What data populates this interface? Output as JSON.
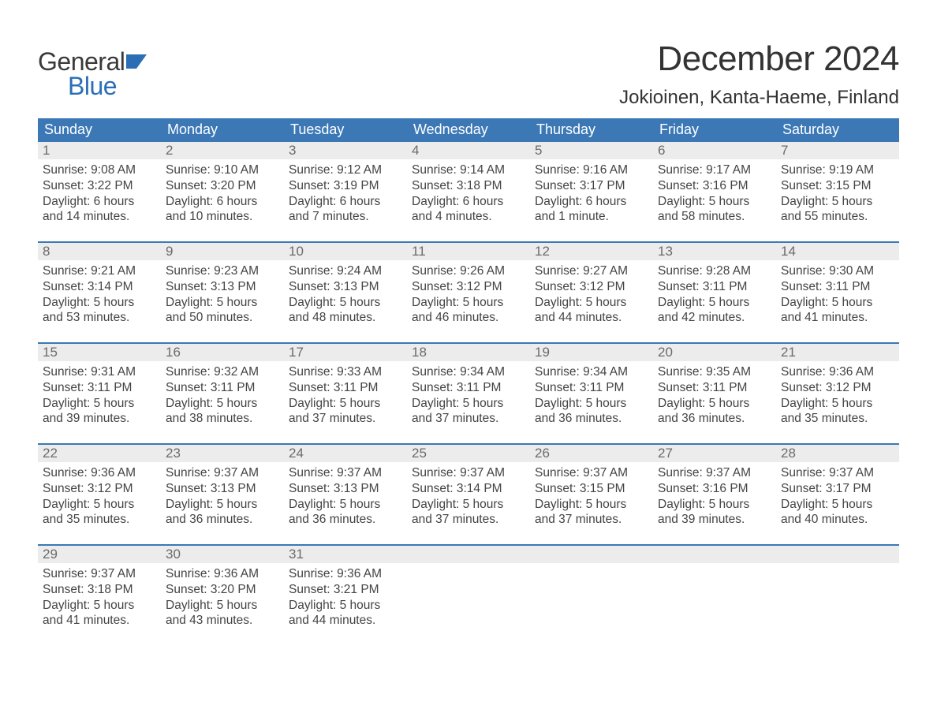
{
  "logo": {
    "word1": "General",
    "word2": "Blue",
    "accent_color": "#2a6fb5",
    "text_color": "#3a3a3a"
  },
  "title": "December 2024",
  "location": "Jokioinen, Kanta-Haeme, Finland",
  "colors": {
    "header_bg": "#3b78b5",
    "header_text": "#ffffff",
    "daynum_bg": "#ececec",
    "daynum_text": "#6b6b6b",
    "body_text": "#444444",
    "week_divider": "#3b78b5",
    "page_bg": "#ffffff"
  },
  "day_labels": [
    "Sunday",
    "Monday",
    "Tuesday",
    "Wednesday",
    "Thursday",
    "Friday",
    "Saturday"
  ],
  "weeks": [
    [
      {
        "n": "1",
        "sunrise": "Sunrise: 9:08 AM",
        "sunset": "Sunset: 3:22 PM",
        "dl1": "Daylight: 6 hours",
        "dl2": "and 14 minutes."
      },
      {
        "n": "2",
        "sunrise": "Sunrise: 9:10 AM",
        "sunset": "Sunset: 3:20 PM",
        "dl1": "Daylight: 6 hours",
        "dl2": "and 10 minutes."
      },
      {
        "n": "3",
        "sunrise": "Sunrise: 9:12 AM",
        "sunset": "Sunset: 3:19 PM",
        "dl1": "Daylight: 6 hours",
        "dl2": "and 7 minutes."
      },
      {
        "n": "4",
        "sunrise": "Sunrise: 9:14 AM",
        "sunset": "Sunset: 3:18 PM",
        "dl1": "Daylight: 6 hours",
        "dl2": "and 4 minutes."
      },
      {
        "n": "5",
        "sunrise": "Sunrise: 9:16 AM",
        "sunset": "Sunset: 3:17 PM",
        "dl1": "Daylight: 6 hours",
        "dl2": "and 1 minute."
      },
      {
        "n": "6",
        "sunrise": "Sunrise: 9:17 AM",
        "sunset": "Sunset: 3:16 PM",
        "dl1": "Daylight: 5 hours",
        "dl2": "and 58 minutes."
      },
      {
        "n": "7",
        "sunrise": "Sunrise: 9:19 AM",
        "sunset": "Sunset: 3:15 PM",
        "dl1": "Daylight: 5 hours",
        "dl2": "and 55 minutes."
      }
    ],
    [
      {
        "n": "8",
        "sunrise": "Sunrise: 9:21 AM",
        "sunset": "Sunset: 3:14 PM",
        "dl1": "Daylight: 5 hours",
        "dl2": "and 53 minutes."
      },
      {
        "n": "9",
        "sunrise": "Sunrise: 9:23 AM",
        "sunset": "Sunset: 3:13 PM",
        "dl1": "Daylight: 5 hours",
        "dl2": "and 50 minutes."
      },
      {
        "n": "10",
        "sunrise": "Sunrise: 9:24 AM",
        "sunset": "Sunset: 3:13 PM",
        "dl1": "Daylight: 5 hours",
        "dl2": "and 48 minutes."
      },
      {
        "n": "11",
        "sunrise": "Sunrise: 9:26 AM",
        "sunset": "Sunset: 3:12 PM",
        "dl1": "Daylight: 5 hours",
        "dl2": "and 46 minutes."
      },
      {
        "n": "12",
        "sunrise": "Sunrise: 9:27 AM",
        "sunset": "Sunset: 3:12 PM",
        "dl1": "Daylight: 5 hours",
        "dl2": "and 44 minutes."
      },
      {
        "n": "13",
        "sunrise": "Sunrise: 9:28 AM",
        "sunset": "Sunset: 3:11 PM",
        "dl1": "Daylight: 5 hours",
        "dl2": "and 42 minutes."
      },
      {
        "n": "14",
        "sunrise": "Sunrise: 9:30 AM",
        "sunset": "Sunset: 3:11 PM",
        "dl1": "Daylight: 5 hours",
        "dl2": "and 41 minutes."
      }
    ],
    [
      {
        "n": "15",
        "sunrise": "Sunrise: 9:31 AM",
        "sunset": "Sunset: 3:11 PM",
        "dl1": "Daylight: 5 hours",
        "dl2": "and 39 minutes."
      },
      {
        "n": "16",
        "sunrise": "Sunrise: 9:32 AM",
        "sunset": "Sunset: 3:11 PM",
        "dl1": "Daylight: 5 hours",
        "dl2": "and 38 minutes."
      },
      {
        "n": "17",
        "sunrise": "Sunrise: 9:33 AM",
        "sunset": "Sunset: 3:11 PM",
        "dl1": "Daylight: 5 hours",
        "dl2": "and 37 minutes."
      },
      {
        "n": "18",
        "sunrise": "Sunrise: 9:34 AM",
        "sunset": "Sunset: 3:11 PM",
        "dl1": "Daylight: 5 hours",
        "dl2": "and 37 minutes."
      },
      {
        "n": "19",
        "sunrise": "Sunrise: 9:34 AM",
        "sunset": "Sunset: 3:11 PM",
        "dl1": "Daylight: 5 hours",
        "dl2": "and 36 minutes."
      },
      {
        "n": "20",
        "sunrise": "Sunrise: 9:35 AM",
        "sunset": "Sunset: 3:11 PM",
        "dl1": "Daylight: 5 hours",
        "dl2": "and 36 minutes."
      },
      {
        "n": "21",
        "sunrise": "Sunrise: 9:36 AM",
        "sunset": "Sunset: 3:12 PM",
        "dl1": "Daylight: 5 hours",
        "dl2": "and 35 minutes."
      }
    ],
    [
      {
        "n": "22",
        "sunrise": "Sunrise: 9:36 AM",
        "sunset": "Sunset: 3:12 PM",
        "dl1": "Daylight: 5 hours",
        "dl2": "and 35 minutes."
      },
      {
        "n": "23",
        "sunrise": "Sunrise: 9:37 AM",
        "sunset": "Sunset: 3:13 PM",
        "dl1": "Daylight: 5 hours",
        "dl2": "and 36 minutes."
      },
      {
        "n": "24",
        "sunrise": "Sunrise: 9:37 AM",
        "sunset": "Sunset: 3:13 PM",
        "dl1": "Daylight: 5 hours",
        "dl2": "and 36 minutes."
      },
      {
        "n": "25",
        "sunrise": "Sunrise: 9:37 AM",
        "sunset": "Sunset: 3:14 PM",
        "dl1": "Daylight: 5 hours",
        "dl2": "and 37 minutes."
      },
      {
        "n": "26",
        "sunrise": "Sunrise: 9:37 AM",
        "sunset": "Sunset: 3:15 PM",
        "dl1": "Daylight: 5 hours",
        "dl2": "and 37 minutes."
      },
      {
        "n": "27",
        "sunrise": "Sunrise: 9:37 AM",
        "sunset": "Sunset: 3:16 PM",
        "dl1": "Daylight: 5 hours",
        "dl2": "and 39 minutes."
      },
      {
        "n": "28",
        "sunrise": "Sunrise: 9:37 AM",
        "sunset": "Sunset: 3:17 PM",
        "dl1": "Daylight: 5 hours",
        "dl2": "and 40 minutes."
      }
    ],
    [
      {
        "n": "29",
        "sunrise": "Sunrise: 9:37 AM",
        "sunset": "Sunset: 3:18 PM",
        "dl1": "Daylight: 5 hours",
        "dl2": "and 41 minutes."
      },
      {
        "n": "30",
        "sunrise": "Sunrise: 9:36 AM",
        "sunset": "Sunset: 3:20 PM",
        "dl1": "Daylight: 5 hours",
        "dl2": "and 43 minutes."
      },
      {
        "n": "31",
        "sunrise": "Sunrise: 9:36 AM",
        "sunset": "Sunset: 3:21 PM",
        "dl1": "Daylight: 5 hours",
        "dl2": "and 44 minutes."
      },
      {
        "n": "",
        "sunrise": "",
        "sunset": "",
        "dl1": "",
        "dl2": "",
        "empty": true
      },
      {
        "n": "",
        "sunrise": "",
        "sunset": "",
        "dl1": "",
        "dl2": "",
        "empty": true
      },
      {
        "n": "",
        "sunrise": "",
        "sunset": "",
        "dl1": "",
        "dl2": "",
        "empty": true
      },
      {
        "n": "",
        "sunrise": "",
        "sunset": "",
        "dl1": "",
        "dl2": "",
        "empty": true
      }
    ]
  ]
}
